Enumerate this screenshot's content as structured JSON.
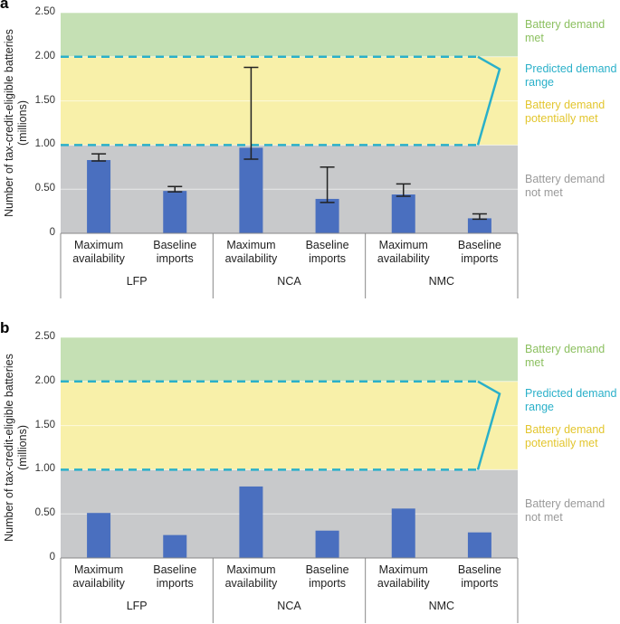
{
  "chart_data": [
    {
      "type": "bar",
      "panel_label": "a",
      "y_label": "Number of tax-credit-eligible batteries (millions)",
      "categories": [
        "Maximum availability",
        "Baseline imports",
        "Maximum availability",
        "Baseline imports",
        "Maximum availability",
        "Baseline imports"
      ],
      "groups": [
        "LFP",
        "NCA",
        "NMC"
      ],
      "values": [
        0.83,
        0.48,
        0.97,
        0.39,
        0.44,
        0.17
      ],
      "error_low": [
        0.82,
        0.47,
        0.84,
        0.35,
        0.42,
        0.16
      ],
      "error_high": [
        0.9,
        0.53,
        1.88,
        0.75,
        0.56,
        0.22
      ],
      "color": "#4a6fbf",
      "ylim": [
        0,
        2.5
      ],
      "yticks": [
        0,
        {
          "value": 0.5,
          "label": "0.50"
        },
        {
          "value": 1,
          "label": "1.00"
        },
        {
          "value": 1.5,
          "label": "1.50"
        },
        {
          "value": 2,
          "label": "2.00"
        },
        {
          "value": 2.5,
          "label": "2.50"
        }
      ],
      "predicted_range": [
        1,
        2
      ],
      "band_colors": {
        "not_met": "#c8c9cb",
        "potentially_met": "#f8f0a9",
        "met": "#c5e0b4",
        "range": "#2ab0c9"
      },
      "annotations": {
        "met": "Battery demand met",
        "range": "Predicted demand range",
        "potentially_met": "Battery demand potentially met",
        "not_met": "Battery demand not met"
      },
      "annotation_colors": {
        "met": "#8cc060",
        "range": "#2ab0c9",
        "potentially_met": "#e3c62e",
        "not_met": "#9a9a9a"
      }
    },
    {
      "type": "bar",
      "panel_label": "b",
      "y_label": "Number of tax-credit-eligible batteries (millions)",
      "categories": [
        "Maximum availability",
        "Baseline imports",
        "Maximum availability",
        "Baseline imports",
        "Maximum availability",
        "Baseline imports"
      ],
      "groups": [
        "LFP",
        "NCA",
        "NMC"
      ],
      "values": [
        0.51,
        0.26,
        0.81,
        0.31,
        0.56,
        0.29
      ],
      "color": "#4a6fbf",
      "ylim": [
        0,
        2.5
      ],
      "yticks": [
        0,
        {
          "value": 0.5,
          "label": "0.50"
        },
        {
          "value": 1,
          "label": "1.00"
        },
        {
          "value": 1.5,
          "label": "1.50"
        },
        {
          "value": 2,
          "label": "2.00"
        },
        {
          "value": 2.5,
          "label": "2.50"
        }
      ],
      "predicted_range": [
        1,
        2
      ],
      "band_colors": {
        "not_met": "#c8c9cb",
        "potentially_met": "#f8f0a9",
        "met": "#c5e0b4",
        "range": "#2ab0c9"
      },
      "annotations": {
        "met": "Battery demand met",
        "range": "Predicted demand range",
        "potentially_met": "Battery demand potentially met",
        "not_met": "Battery demand not met"
      },
      "annotation_colors": {
        "met": "#8cc060",
        "range": "#2ab0c9",
        "potentially_met": "#e3c62e",
        "not_met": "#9a9a9a"
      }
    }
  ]
}
